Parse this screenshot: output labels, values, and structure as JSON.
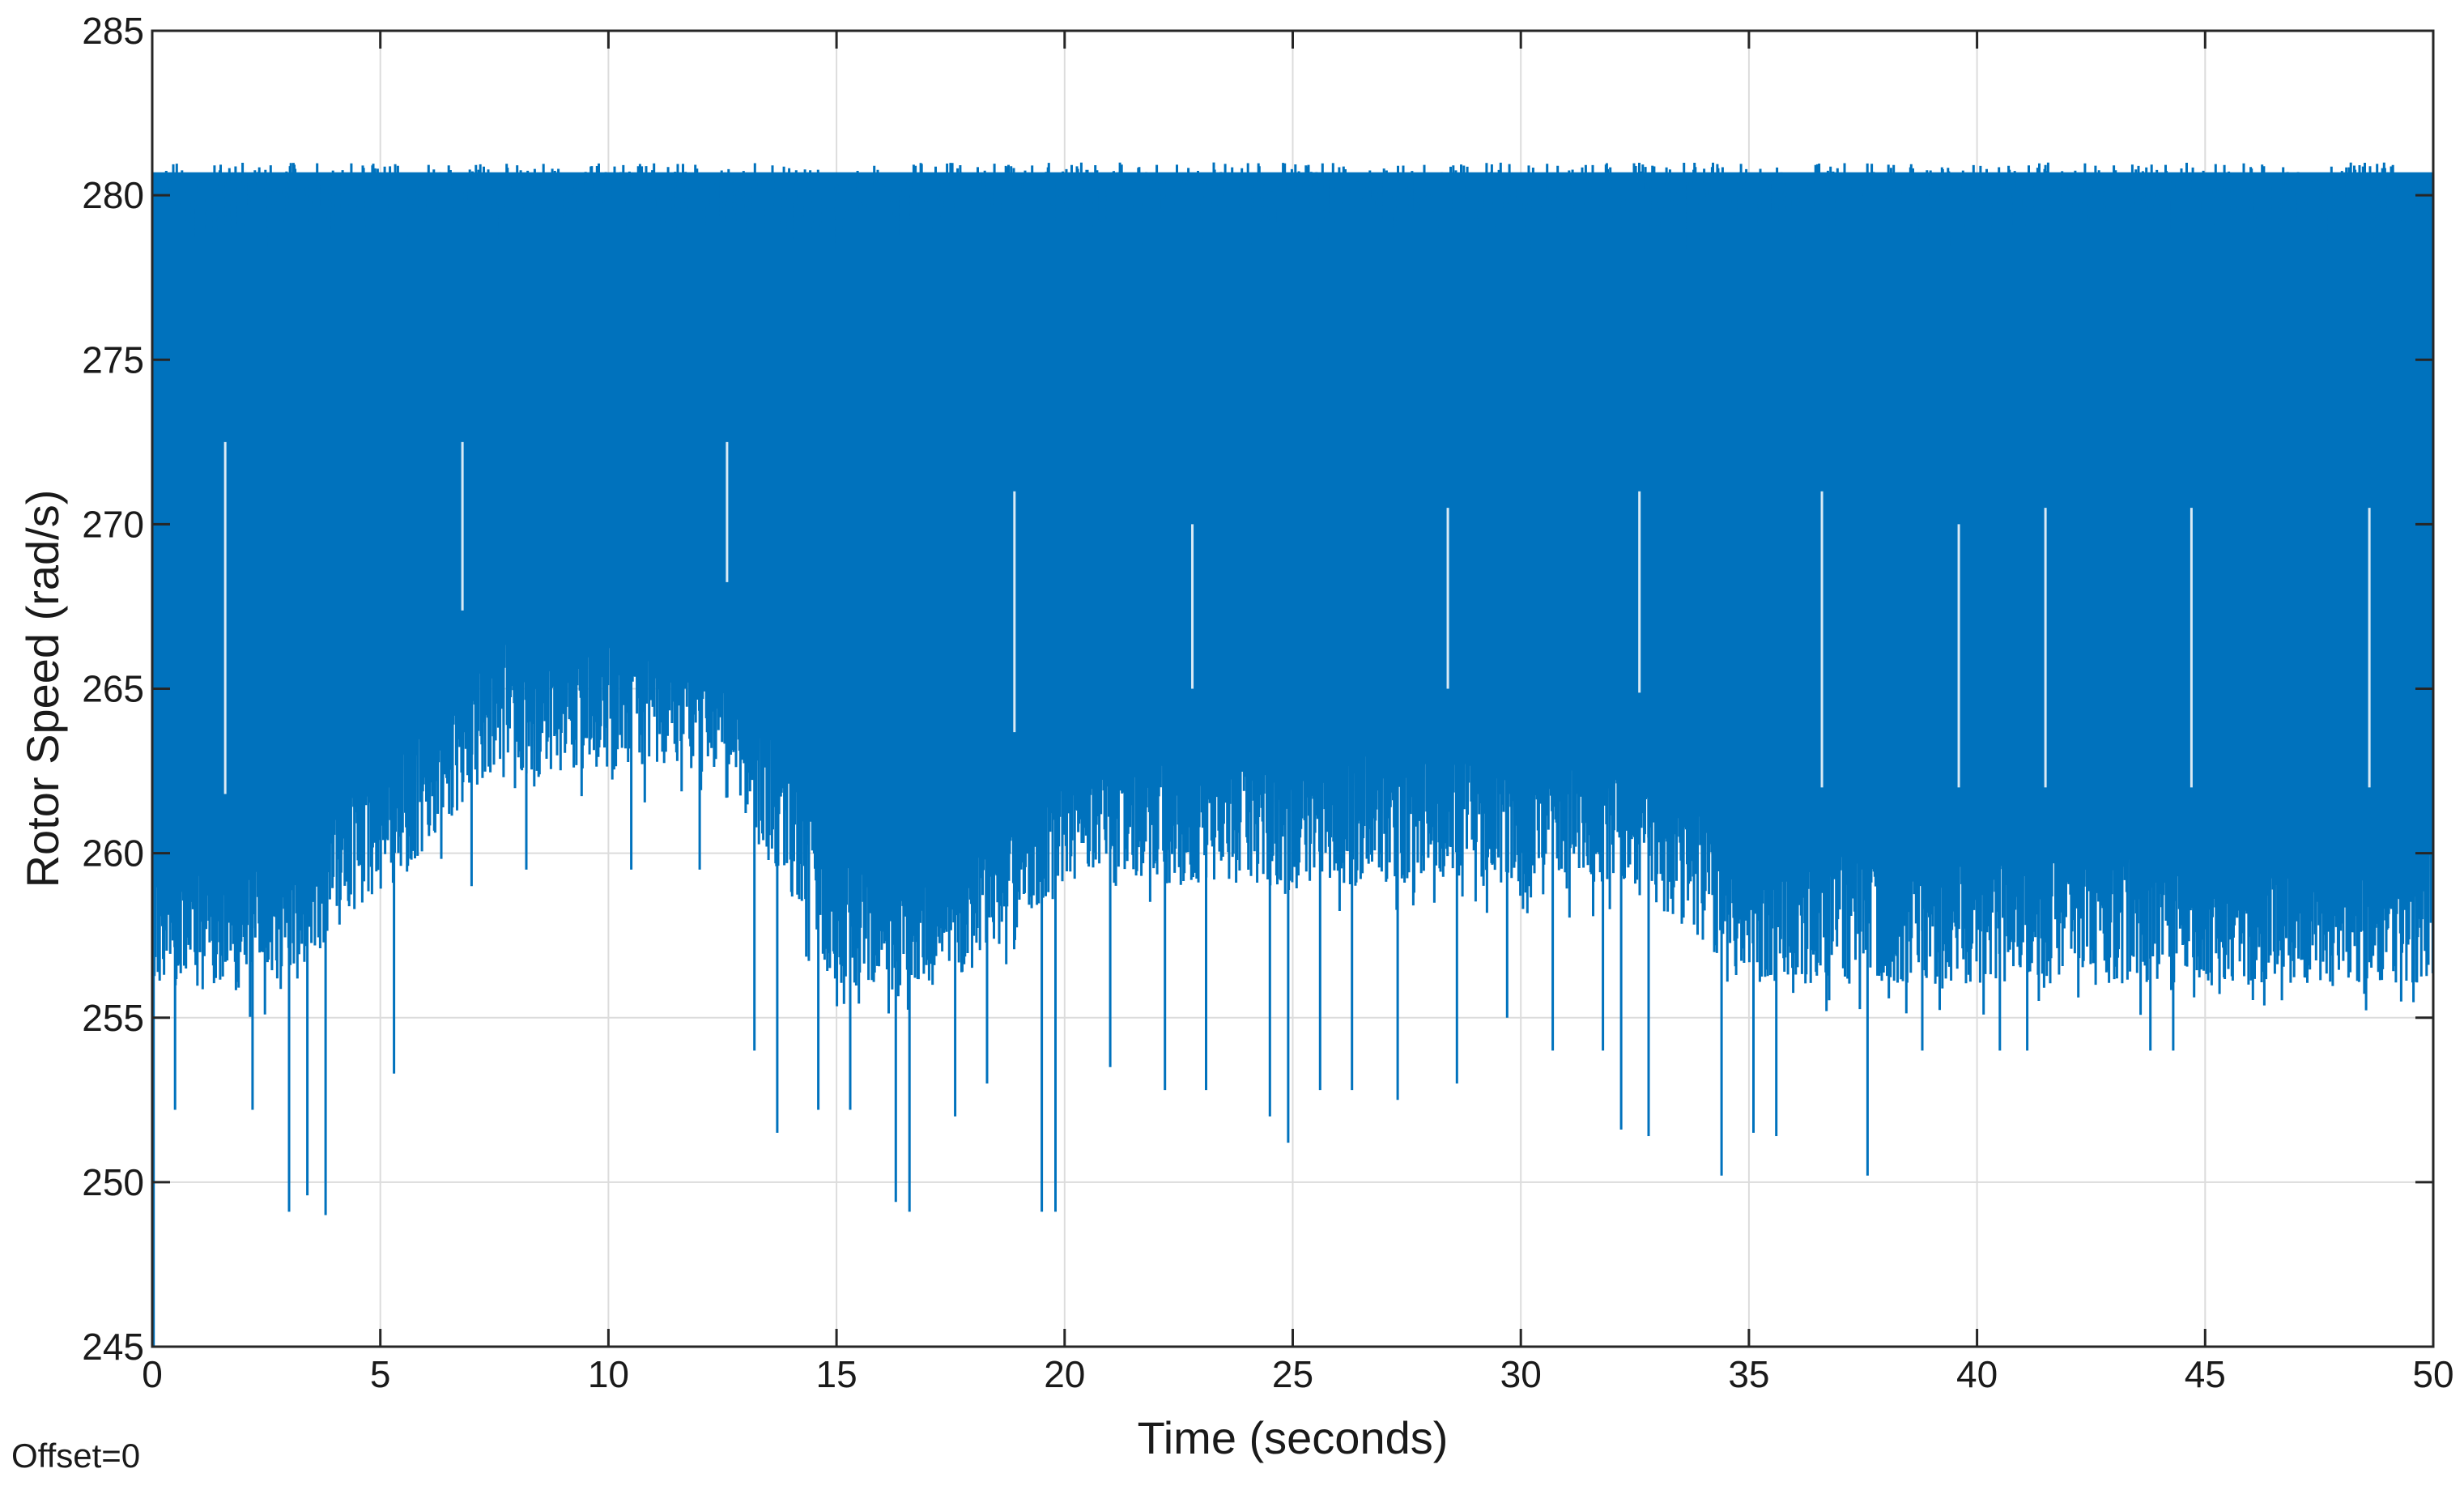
{
  "chart_data": {
    "type": "line",
    "xlabel": "Time (seconds)",
    "ylabel": "Rotor Speed (rad/s)",
    "xlim": [
      0,
      50
    ],
    "ylim": [
      245,
      285
    ],
    "xticks": [
      0,
      5,
      10,
      15,
      20,
      25,
      30,
      35,
      40,
      45,
      50
    ],
    "yticks": [
      245,
      250,
      255,
      260,
      265,
      270,
      275,
      280,
      285
    ],
    "grid": true,
    "annotation": "Offset=0",
    "series": [
      {
        "color": "#0072BD",
        "upper_envelope": [
          281,
          281,
          281,
          281,
          281,
          281,
          281,
          281,
          281,
          281,
          281,
          281,
          281,
          281,
          281,
          281,
          281,
          281,
          281,
          281,
          281
        ],
        "dense_band_lower": [
          259.8,
          259.8,
          262.5,
          266.5,
          266.5,
          266.5,
          260,
          260,
          263,
          263,
          263,
          263,
          263,
          263,
          260,
          260,
          260,
          260,
          260,
          260,
          260
        ],
        "spike_min": [
          [
            0.03,
            245
          ],
          [
            0.5,
            252.2
          ],
          [
            2.2,
            252.2
          ],
          [
            3.0,
            249.1
          ],
          [
            3.4,
            249.6
          ],
          [
            3.8,
            249
          ],
          [
            5.3,
            253.3
          ],
          [
            7.0,
            259
          ],
          [
            8.2,
            259.5
          ],
          [
            10.5,
            259.5
          ],
          [
            12.0,
            259.5
          ],
          [
            13.2,
            254
          ],
          [
            13.7,
            251.5
          ],
          [
            14.6,
            252.2
          ],
          [
            15.3,
            252.2
          ],
          [
            16.3,
            249.4
          ],
          [
            16.6,
            249.1
          ],
          [
            17.6,
            252
          ],
          [
            18.3,
            253
          ],
          [
            19.5,
            249.1
          ],
          [
            19.8,
            249.1
          ],
          [
            21.0,
            253.5
          ],
          [
            22.2,
            252.8
          ],
          [
            23.1,
            252.8
          ],
          [
            24.5,
            252
          ],
          [
            24.9,
            251.2
          ],
          [
            25.6,
            252.8
          ],
          [
            26.3,
            252.8
          ],
          [
            27.3,
            252.5
          ],
          [
            28.6,
            253
          ],
          [
            29.7,
            255
          ],
          [
            30.7,
            254
          ],
          [
            31.8,
            254
          ],
          [
            32.2,
            251.6
          ],
          [
            32.8,
            251.4
          ],
          [
            34.4,
            250.2
          ],
          [
            35.1,
            251.5
          ],
          [
            35.6,
            251.4
          ],
          [
            37.6,
            250.2
          ],
          [
            38.8,
            254
          ],
          [
            40.5,
            254
          ],
          [
            41.1,
            254
          ],
          [
            42.6,
            256
          ],
          [
            43.8,
            254
          ],
          [
            44.3,
            254
          ],
          [
            46.1,
            257
          ],
          [
            48.1,
            257
          ],
          [
            49.7,
            258
          ]
        ],
        "spike_max": [
          [
            1.6,
            272.5
          ],
          [
            6.8,
            272.5
          ],
          [
            12.6,
            272.5
          ],
          [
            18.9,
            271
          ],
          [
            22.8,
            270
          ],
          [
            28.4,
            270.5
          ],
          [
            32.6,
            271
          ],
          [
            36.6,
            271
          ],
          [
            39.6,
            270
          ],
          [
            41.5,
            270.5
          ],
          [
            44.7,
            270.5
          ],
          [
            48.6,
            270.5
          ]
        ]
      }
    ]
  }
}
